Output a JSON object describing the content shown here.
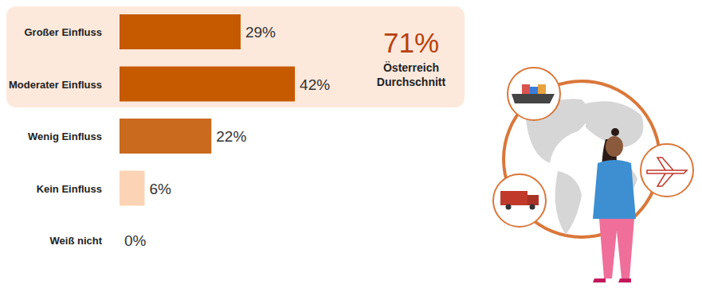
{
  "chart_data": {
    "type": "bar",
    "orientation": "horizontal",
    "categories": [
      "Großer Einfluss",
      "Moderater Einfluss",
      "Wenig Einfluss",
      "Kein Einfluss",
      "Weiß nicht"
    ],
    "values": [
      29,
      42,
      22,
      6,
      0
    ],
    "value_labels": [
      "29%",
      "42%",
      "22%",
      "6%",
      "0%"
    ],
    "colors": [
      "#c55a00",
      "#c55a00",
      "#c96a1f",
      "#fdd3b5",
      "#fdd3b5"
    ],
    "xlim": [
      0,
      100
    ],
    "data_labels": true,
    "tick_labels": "y",
    "grid": false,
    "annotation": {
      "value": 71,
      "label": "71%",
      "text": [
        "Österreich",
        "Durchschnitt"
      ]
    }
  }
}
